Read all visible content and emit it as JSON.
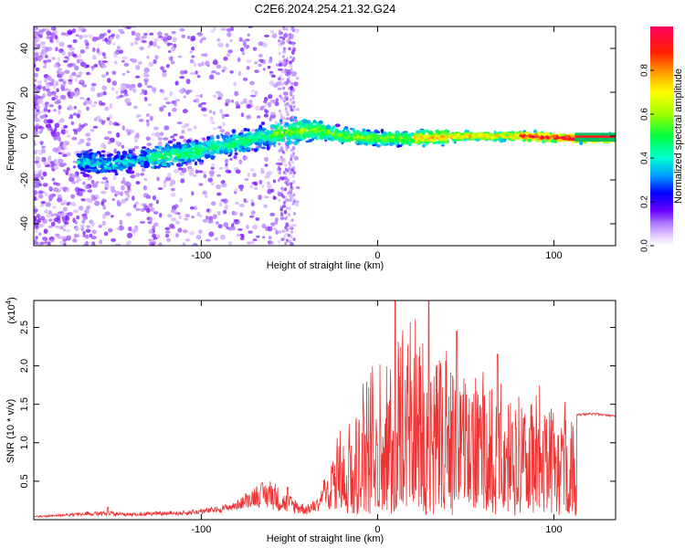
{
  "chart_data": [
    {
      "type": "heatmap",
      "title": "C2E6.2024.254.21.32.G24",
      "xlabel": "Height of straight line (km)",
      "ylabel": "Frequency (Hz)",
      "xlim": [
        -195,
        135
      ],
      "ylim": [
        -50,
        50
      ],
      "xticks": [
        -100,
        0,
        100
      ],
      "yticks": [
        -40,
        -20,
        0,
        20,
        40
      ],
      "trace": {
        "description_points_x": [
          -160,
          -150,
          -130,
          -110,
          -90,
          -70,
          -50,
          -35,
          -20,
          0,
          20,
          50,
          80,
          110,
          135
        ],
        "center_frequency": [
          -12,
          -13,
          -10,
          -8,
          -5,
          -1,
          2,
          3,
          0,
          -1,
          -1,
          0,
          0,
          -1,
          -1
        ]
      },
      "colorbar": {
        "label": "Normalized spectral amplitude",
        "range": [
          0,
          1
        ],
        "ticks": [
          0.0,
          0.2,
          0.4,
          0.6,
          0.8
        ],
        "tick_labels": [
          "0.0",
          "0.2",
          "0.4",
          "0.6",
          "0.8"
        ]
      }
    },
    {
      "type": "line",
      "series": [
        {
          "name": "SNR",
          "color": "#ee3333"
        }
      ],
      "xlabel": "Height of straight line (km)",
      "ylabel": "SNR (10 * v/v)",
      "scale_label": "(x10",
      "scale_exp": "4",
      "xlim": [
        -195,
        135
      ],
      "ylim": [
        0,
        2.85
      ],
      "xticks": [
        -100,
        0,
        100
      ],
      "yticks": [
        0.5,
        1.0,
        1.5,
        2.0,
        2.5
      ],
      "ytick_labels": [
        "0.5",
        "1.0",
        "1.5",
        "2.0",
        "2.5"
      ],
      "envelope_x": [
        -195,
        -160,
        -140,
        -110,
        -90,
        -80,
        -70,
        -60,
        -55,
        -40,
        -33,
        -28,
        -25,
        -20,
        -10,
        0,
        10,
        20,
        30,
        50,
        70,
        90,
        110,
        113,
        120,
        135
      ],
      "envelope_base": [
        0.05,
        0.06,
        0.06,
        0.07,
        0.1,
        0.14,
        0.18,
        0.15,
        0.1,
        0.08,
        0.12,
        0.3,
        0.45,
        0.45,
        0.5,
        0.6,
        0.65,
        0.7,
        0.75,
        0.8,
        0.9,
        1.0,
        1.15,
        1.35,
        1.38,
        1.35
      ],
      "envelope_peak": [
        0.05,
        0.12,
        0.1,
        0.12,
        0.18,
        0.25,
        0.45,
        0.55,
        0.4,
        0.2,
        0.3,
        0.8,
        1.1,
        1.4,
        1.9,
        2.3,
        2.6,
        2.7,
        2.55,
        2.3,
        2.0,
        1.8,
        1.55,
        1.4,
        1.4,
        1.36
      ],
      "spikes": [
        {
          "x": -153,
          "y": 0.16
        },
        {
          "x": -105,
          "y": 0.13
        },
        {
          "x": -51,
          "y": 0.42
        },
        {
          "x": 10,
          "y": 2.85
        },
        {
          "x": 29,
          "y": 2.85
        },
        {
          "x": 45,
          "y": 2.45
        },
        {
          "x": 68,
          "y": 2.15
        }
      ]
    }
  ]
}
